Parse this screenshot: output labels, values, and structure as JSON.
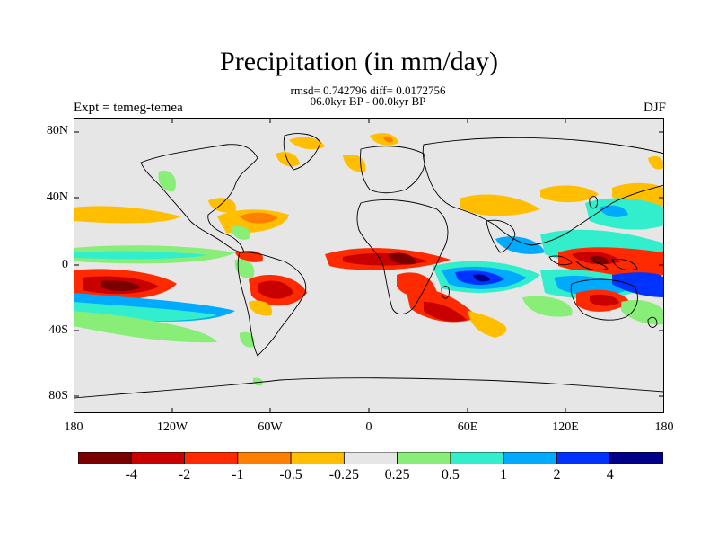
{
  "title": "Precipitation (in mm/day)",
  "stats_line": "rmsd= 0.742796 diff= 0.0172756",
  "period_line": "06.0kyr BP - 00.0kyr BP",
  "experiment_label": "Expt = temeg-temea",
  "season_label": "DJF",
  "axes": {
    "y_ticks": [
      "80N",
      "40N",
      "0",
      "40S",
      "80S"
    ],
    "x_ticks": [
      "180",
      "120W",
      "60W",
      "0",
      "60E",
      "120E",
      "180"
    ]
  },
  "colorbar": {
    "labels": [
      "-4",
      "-2",
      "-1",
      "-0.5",
      "-0.25",
      "0.25",
      "0.5",
      "1",
      "2",
      "4"
    ],
    "colors": [
      "#7a0000",
      "#c80000",
      "#ff2a00",
      "#ff7f00",
      "#ffbf00",
      "#e6e6e6",
      "#88ee77",
      "#33eecc",
      "#00aaff",
      "#0033ff",
      "#000088"
    ]
  },
  "colors": {
    "background_land_ocean": "#e6e6e6",
    "coastline": "#000000"
  }
}
